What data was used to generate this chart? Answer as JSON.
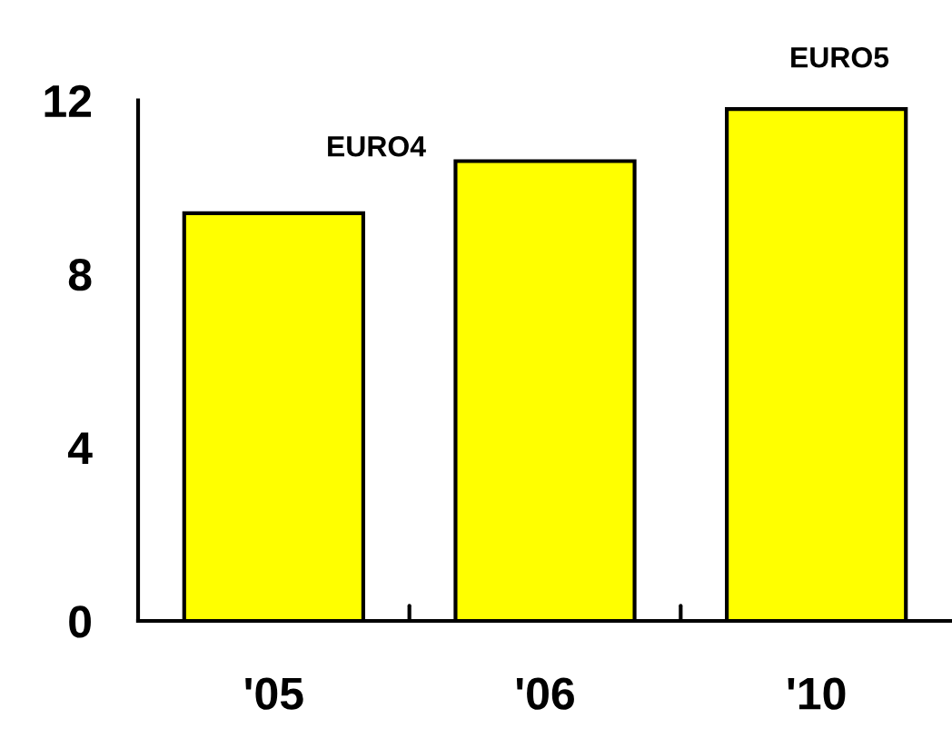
{
  "chart_data": {
    "type": "bar",
    "categories": [
      "'05",
      "'06",
      "'10"
    ],
    "values": [
      9.4,
      10.6,
      11.8
    ],
    "color": "#ffff00",
    "ylim": [
      0,
      12
    ],
    "yticks": [
      0,
      4,
      8,
      12
    ],
    "grid": false,
    "legend": false,
    "annotations": [
      "EURO4",
      "EURO5"
    ]
  }
}
